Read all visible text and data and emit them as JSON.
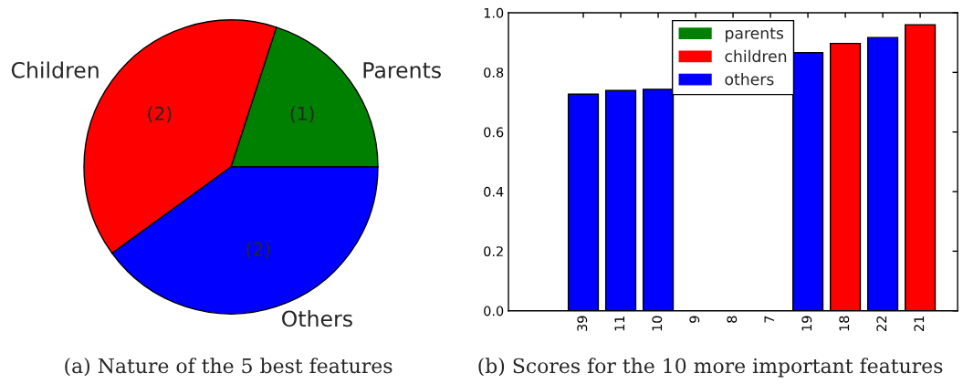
{
  "chart_data": [
    {
      "type": "pie",
      "title": "(a) Nature of the 5 best features",
      "categories": [
        "Parents",
        "Children",
        "Others"
      ],
      "values": [
        1,
        2,
        2
      ],
      "colors": [
        "#008000",
        "#ff0000",
        "#0000ff"
      ],
      "value_labels": [
        "(1)",
        "(2)",
        "(2)"
      ]
    },
    {
      "type": "bar",
      "title": "(b) Scores for the 10 more important features",
      "categories": [
        "39",
        "11",
        "10",
        "9",
        "8",
        "7",
        "19",
        "18",
        "22",
        "21"
      ],
      "series": [
        {
          "name": "parents",
          "color": "#008000",
          "values": [
            null,
            null,
            null,
            null,
            null,
            null,
            null,
            null,
            null,
            null
          ]
        },
        {
          "name": "children",
          "color": "#ff0000",
          "values": [
            null,
            null,
            null,
            null,
            null,
            null,
            null,
            0.897,
            null,
            0.96
          ]
        },
        {
          "name": "others",
          "color": "#0000ff",
          "values": [
            0.727,
            0.739,
            0.743,
            null,
            null,
            null,
            0.866,
            null,
            0.917,
            null
          ]
        }
      ],
      "ylim": [
        0,
        1
      ],
      "yticks": [
        {
          "value": 0,
          "label": "0.0"
        },
        0.2,
        0.4,
        0.6,
        0.8,
        {
          "value": 1,
          "label": "1.0"
        }
      ],
      "legend": "top"
    }
  ]
}
